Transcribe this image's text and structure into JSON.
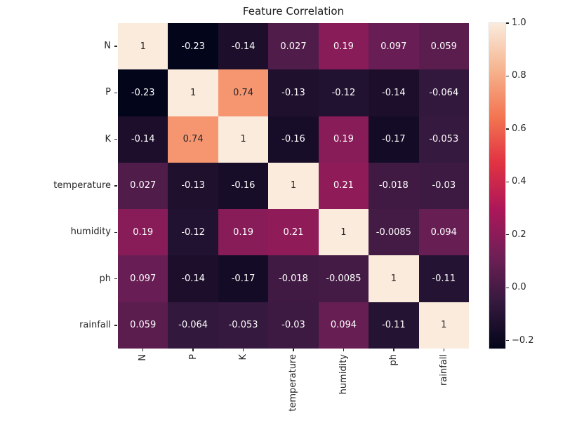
{
  "chart_data": {
    "type": "heatmap",
    "title": "Feature Correlation",
    "categories": [
      "N",
      "P",
      "K",
      "temperature",
      "humidity",
      "ph",
      "rainfall"
    ],
    "x_tick_labels": [
      "N",
      "P",
      "K",
      "temperature",
      "humidity",
      "ph",
      "rainfall"
    ],
    "y_tick_labels": [
      "N",
      "P",
      "K",
      "temperature",
      "humidity",
      "ph",
      "rainfall"
    ],
    "matrix": [
      [
        1,
        -0.23,
        -0.14,
        0.027,
        0.19,
        0.097,
        0.059
      ],
      [
        -0.23,
        1,
        0.74,
        -0.13,
        -0.12,
        -0.14,
        -0.064
      ],
      [
        -0.14,
        0.74,
        1,
        -0.16,
        0.19,
        -0.17,
        -0.053
      ],
      [
        0.027,
        -0.13,
        -0.16,
        1,
        0.21,
        -0.018,
        -0.03
      ],
      [
        0.19,
        -0.12,
        0.19,
        0.21,
        1,
        -0.0085,
        0.094
      ],
      [
        0.097,
        -0.14,
        -0.17,
        -0.018,
        -0.0085,
        1,
        -0.11
      ],
      [
        0.059,
        -0.064,
        -0.053,
        -0.03,
        0.094,
        -0.11,
        1
      ]
    ],
    "annotations": [
      [
        "1",
        "-0.23",
        "-0.14",
        "0.027",
        "0.19",
        "0.097",
        "0.059"
      ],
      [
        "-0.23",
        "1",
        "0.74",
        "-0.13",
        "-0.12",
        "-0.14",
        "-0.064"
      ],
      [
        "-0.14",
        "0.74",
        "1",
        "-0.16",
        "0.19",
        "-0.17",
        "-0.053"
      ],
      [
        "0.027",
        "-0.13",
        "-0.16",
        "1",
        "0.21",
        "-0.018",
        "-0.03"
      ],
      [
        "0.19",
        "-0.12",
        "0.19",
        "0.21",
        "1",
        "-0.0085",
        "0.094"
      ],
      [
        "0.097",
        "-0.14",
        "-0.17",
        "-0.018",
        "-0.0085",
        "1",
        "-0.11"
      ],
      [
        "0.059",
        "-0.064",
        "-0.053",
        "-0.03",
        "0.094",
        "-0.11",
        "1"
      ]
    ],
    "vmin": -0.23,
    "vmax": 1.0,
    "grid": false,
    "legend_position": "right-colorbar",
    "colorbar": {
      "tick_labels": [
        "1.0",
        "0.8",
        "0.6",
        "0.4",
        "0.2",
        "0.0",
        "−0.2"
      ],
      "tick_values": [
        1.0,
        0.8,
        0.6,
        0.4,
        0.2,
        0.0,
        -0.2
      ]
    },
    "colormap": {
      "name": "rocket",
      "stops": [
        {
          "t": 0.0,
          "color": "#03051A"
        },
        {
          "t": 0.1429,
          "color": "#35193E"
        },
        {
          "t": 0.2857,
          "color": "#701F57"
        },
        {
          "t": 0.4286,
          "color": "#AD1759"
        },
        {
          "t": 0.5714,
          "color": "#E13342"
        },
        {
          "t": 0.7143,
          "color": "#F37651"
        },
        {
          "t": 0.8571,
          "color": "#F6B48F"
        },
        {
          "t": 1.0,
          "color": "#FAEBDD"
        }
      ]
    },
    "colors": {
      "annotation_dark_text": "#262626",
      "annotation_light_text": "#ffffff",
      "tick_color": "#262626",
      "background": "#ffffff"
    }
  }
}
